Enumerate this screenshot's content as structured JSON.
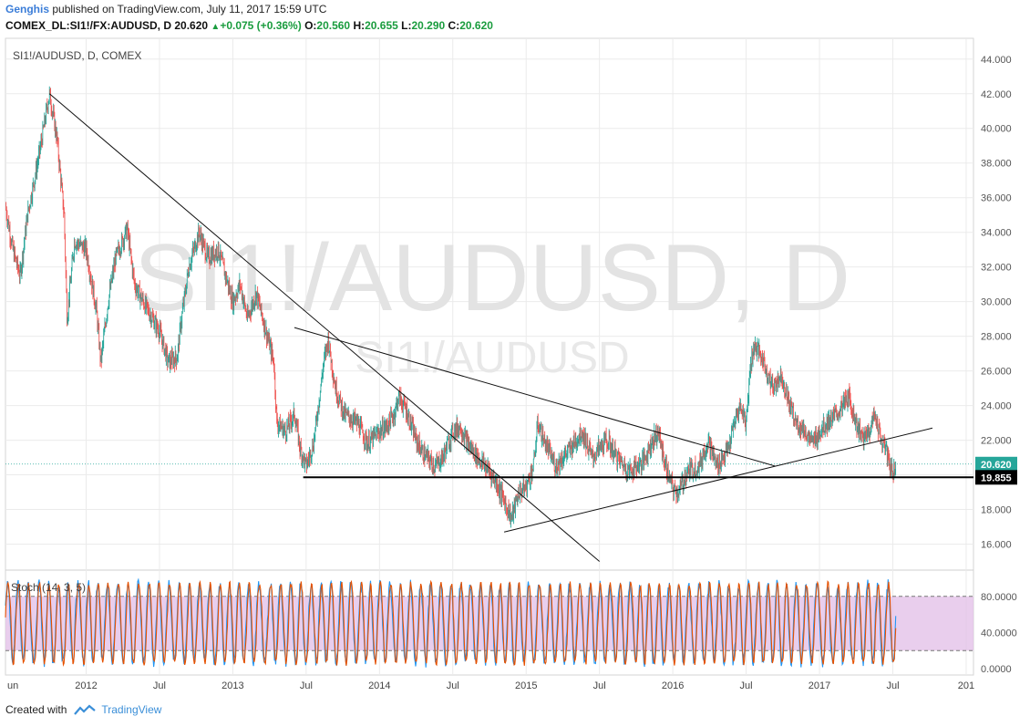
{
  "header": {
    "author": "Genghis",
    "published_text": "published on TradingView.com, July 11, 2017 15:59 UTC",
    "symbol_line": "COMEX_DL:SI1!/FX:AUDUSD, D",
    "last": "20.620",
    "change": "+0.075 (+0.36%)",
    "o_label": "O:",
    "o_value": "20.560",
    "h_label": "H:",
    "h_value": "20.655",
    "l_label": "L:",
    "l_value": "20.290",
    "c_label": "C:",
    "c_value": "20.620"
  },
  "footer": {
    "created_with": "Created with",
    "brand": "TradingView"
  },
  "colors": {
    "up": "#26a69a",
    "down": "#ef5350",
    "stoch_k": "#2196f3",
    "stoch_d": "#e65100",
    "band": "#e1bee7",
    "grid": "#ebebeb",
    "accent": "#1a9c3e"
  },
  "icons": [
    "tradingview-logo-icon",
    "triangle-up-icon"
  ],
  "chart_data": {
    "type": "candlestick",
    "title": "SI1!/AUDUSD, D, COMEX",
    "watermark": "SI1!/AUDUSD, D",
    "watermark_sub": "SI1!/AUDUSD",
    "y_ticks": [
      "44.000",
      "42.000",
      "40.000",
      "38.000",
      "36.000",
      "34.000",
      "32.000",
      "30.000",
      "28.000",
      "26.000",
      "24.000",
      "22.000",
      "20.000",
      "18.000",
      "16.000"
    ],
    "ylim": [
      14.5,
      45.2
    ],
    "x_ticks": [
      {
        "label": "un",
        "t": 2011.43
      },
      {
        "label": "2012",
        "t": 2012.0
      },
      {
        "label": "Jul",
        "t": 2012.5
      },
      {
        "label": "2013",
        "t": 2013.0
      },
      {
        "label": "Jul",
        "t": 2013.5
      },
      {
        "label": "2014",
        "t": 2014.0
      },
      {
        "label": "Jul",
        "t": 2014.5
      },
      {
        "label": "2015",
        "t": 2015.0
      },
      {
        "label": "Jul",
        "t": 2015.5
      },
      {
        "label": "2016",
        "t": 2016.0
      },
      {
        "label": "Jul",
        "t": 2016.5
      },
      {
        "label": "2017",
        "t": 2017.0
      },
      {
        "label": "Jul",
        "t": 2017.5
      },
      {
        "label": "201",
        "t": 2018.0
      }
    ],
    "xlim": [
      2011.45,
      2018.05
    ],
    "price_path": [
      [
        2011.45,
        35.5
      ],
      [
        2011.5,
        33.0
      ],
      [
        2011.55,
        31.5
      ],
      [
        2011.6,
        35.0
      ],
      [
        2011.68,
        38.5
      ],
      [
        2011.75,
        42.0
      ],
      [
        2011.8,
        39.5
      ],
      [
        2011.85,
        35.0
      ],
      [
        2011.87,
        29.0
      ],
      [
        2011.92,
        33.5
      ],
      [
        2012.0,
        33.0
      ],
      [
        2012.07,
        29.5
      ],
      [
        2012.1,
        26.5
      ],
      [
        2012.15,
        30.0
      ],
      [
        2012.2,
        32.5
      ],
      [
        2012.28,
        34.2
      ],
      [
        2012.33,
        31.0
      ],
      [
        2012.4,
        29.8
      ],
      [
        2012.5,
        28.3
      ],
      [
        2012.56,
        26.5
      ],
      [
        2012.62,
        26.8
      ],
      [
        2012.65,
        29.0
      ],
      [
        2012.7,
        32.0
      ],
      [
        2012.77,
        34.0
      ],
      [
        2012.83,
        32.5
      ],
      [
        2012.9,
        33.0
      ],
      [
        2013.0,
        30.0
      ],
      [
        2013.05,
        31.0
      ],
      [
        2013.1,
        29.0
      ],
      [
        2013.16,
        30.5
      ],
      [
        2013.22,
        28.5
      ],
      [
        2013.28,
        26.5
      ],
      [
        2013.3,
        23.0
      ],
      [
        2013.36,
        22.5
      ],
      [
        2013.42,
        23.5
      ],
      [
        2013.46,
        21.5
      ],
      [
        2013.5,
        20.5
      ],
      [
        2013.55,
        21.8
      ],
      [
        2013.62,
        26.5
      ],
      [
        2013.65,
        27.8
      ],
      [
        2013.7,
        25.0
      ],
      [
        2013.76,
        23.5
      ],
      [
        2013.85,
        23.0
      ],
      [
        2013.92,
        21.8
      ],
      [
        2014.0,
        22.5
      ],
      [
        2014.05,
        22.8
      ],
      [
        2014.1,
        23.5
      ],
      [
        2014.13,
        24.5
      ],
      [
        2014.18,
        23.8
      ],
      [
        2014.25,
        22.0
      ],
      [
        2014.3,
        21.2
      ],
      [
        2014.38,
        20.5
      ],
      [
        2014.43,
        21.0
      ],
      [
        2014.5,
        22.5
      ],
      [
        2014.55,
        22.8
      ],
      [
        2014.6,
        21.8
      ],
      [
        2014.67,
        21.0
      ],
      [
        2014.75,
        20.2
      ],
      [
        2014.8,
        19.5
      ],
      [
        2014.85,
        18.5
      ],
      [
        2014.9,
        17.5
      ],
      [
        2014.95,
        19.0
      ],
      [
        2015.0,
        19.3
      ],
      [
        2015.05,
        20.5
      ],
      [
        2015.08,
        23.0
      ],
      [
        2015.12,
        22.0
      ],
      [
        2015.2,
        20.5
      ],
      [
        2015.3,
        21.5
      ],
      [
        2015.38,
        22.5
      ],
      [
        2015.45,
        21.0
      ],
      [
        2015.55,
        22.0
      ],
      [
        2015.62,
        21.0
      ],
      [
        2015.7,
        20.2
      ],
      [
        2015.8,
        20.8
      ],
      [
        2015.85,
        21.8
      ],
      [
        2015.9,
        22.5
      ],
      [
        2015.95,
        20.5
      ],
      [
        2016.0,
        19.2
      ],
      [
        2016.04,
        19.0
      ],
      [
        2016.1,
        20.2
      ],
      [
        2016.18,
        20.5
      ],
      [
        2016.24,
        22.0
      ],
      [
        2016.3,
        20.5
      ],
      [
        2016.38,
        21.5
      ],
      [
        2016.42,
        23.0
      ],
      [
        2016.46,
        24.0
      ],
      [
        2016.5,
        23.0
      ],
      [
        2016.53,
        26.5
      ],
      [
        2016.56,
        27.5
      ],
      [
        2016.62,
        26.5
      ],
      [
        2016.68,
        25.0
      ],
      [
        2016.74,
        25.8
      ],
      [
        2016.78,
        24.5
      ],
      [
        2016.84,
        23.0
      ],
      [
        2016.9,
        22.5
      ],
      [
        2016.95,
        21.8
      ],
      [
        2017.0,
        22.5
      ],
      [
        2017.05,
        23.0
      ],
      [
        2017.12,
        23.5
      ],
      [
        2017.2,
        24.5
      ],
      [
        2017.25,
        23.0
      ],
      [
        2017.3,
        22.0
      ],
      [
        2017.35,
        22.8
      ],
      [
        2017.38,
        23.5
      ],
      [
        2017.42,
        22.0
      ],
      [
        2017.45,
        21.5
      ],
      [
        2017.5,
        20.0
      ],
      [
        2017.52,
        20.62
      ]
    ],
    "hline": {
      "value": 19.855,
      "label": "19.855",
      "from": 2013.48
    },
    "last_price": {
      "value": 20.62,
      "label": "20.620"
    },
    "trendlines": [
      {
        "t1": 2011.75,
        "v1": 42.0,
        "t2": 2015.5,
        "v2": 15.0
      },
      {
        "t1": 2013.42,
        "v1": 28.5,
        "t2": 2016.7,
        "v2": 20.5
      },
      {
        "t1": 2014.85,
        "v1": 16.7,
        "t2": 2017.77,
        "v2": 22.7
      }
    ],
    "stoch": {
      "title": "Stoch (14, 3, 5)",
      "y_ticks": [
        "80.0000",
        "40.0000",
        "0.0000"
      ],
      "ylim": [
        -6,
        108
      ],
      "upper": 80,
      "lower": 20,
      "periods": 88
    }
  }
}
